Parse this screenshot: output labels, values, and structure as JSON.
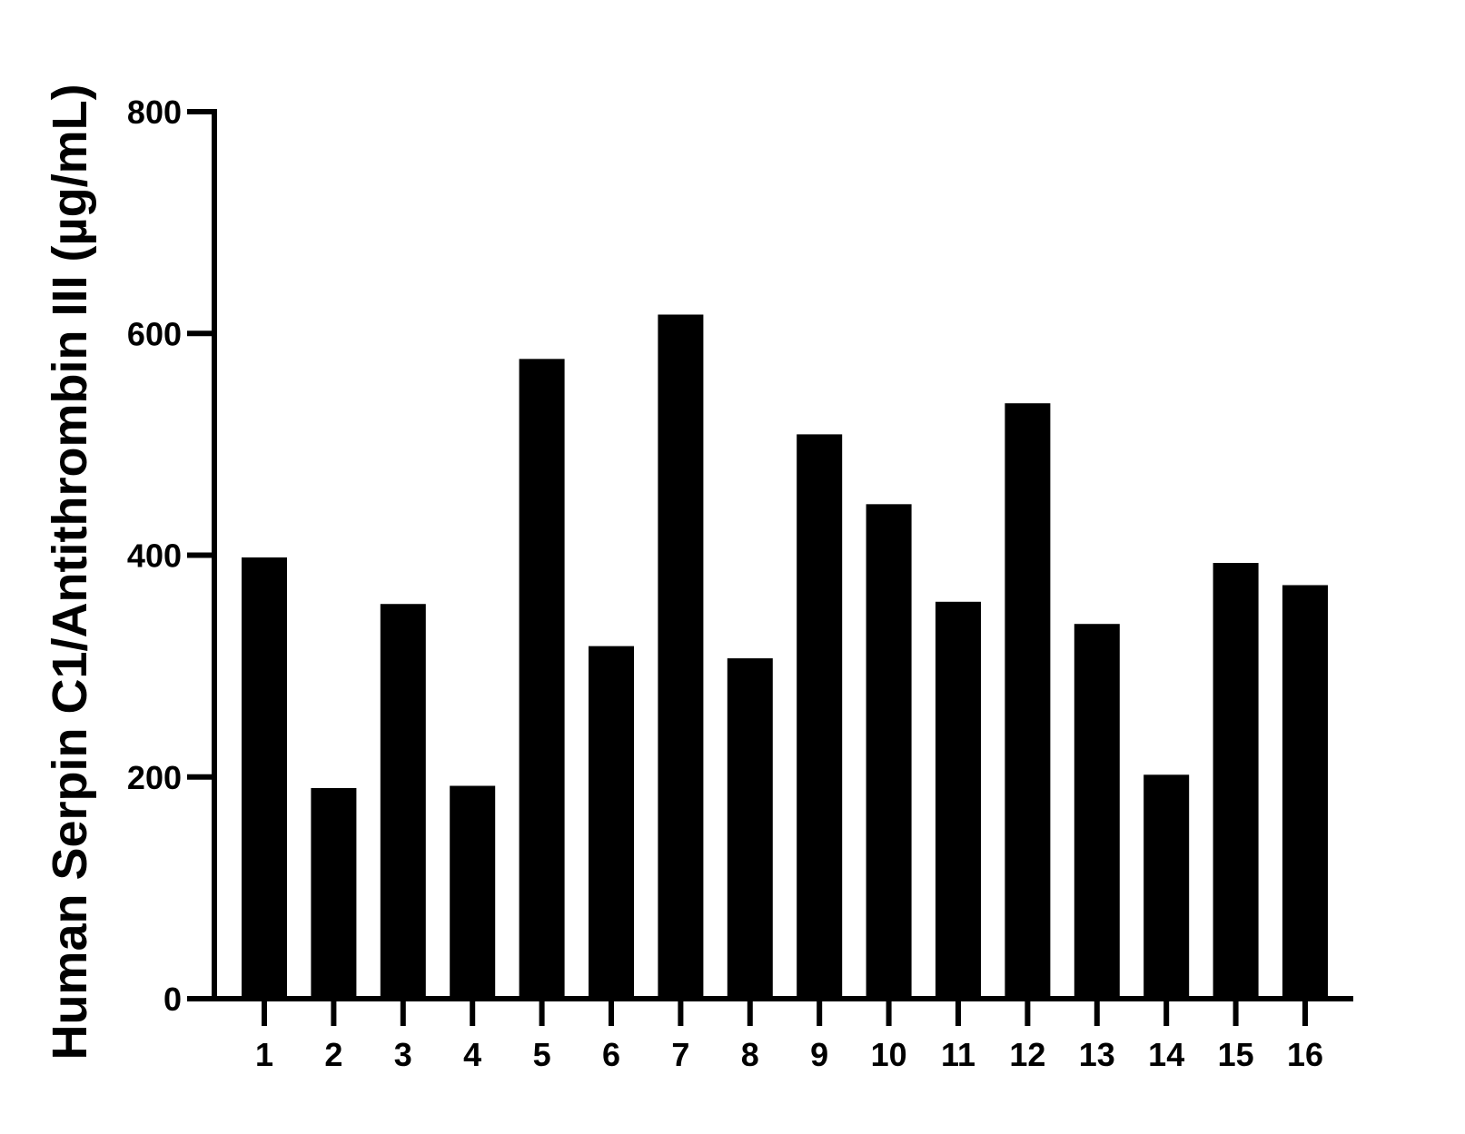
{
  "chart_data": {
    "type": "bar",
    "title": "",
    "xlabel": "",
    "ylabel": "Human Serpin C1/Antithrombin III (µg/mL)",
    "categories": [
      "1",
      "2",
      "3",
      "4",
      "5",
      "6",
      "7",
      "8",
      "9",
      "10",
      "11",
      "12",
      "13",
      "14",
      "15",
      "16"
    ],
    "values": [
      398,
      190,
      356,
      192,
      577,
      318,
      617,
      307,
      509,
      446,
      358,
      537,
      338,
      202,
      393,
      373
    ],
    "ylim": [
      0,
      800
    ],
    "yticks": [
      "0",
      "200",
      "400",
      "600",
      "800"
    ],
    "grid": false,
    "bar_color": "#000000"
  }
}
